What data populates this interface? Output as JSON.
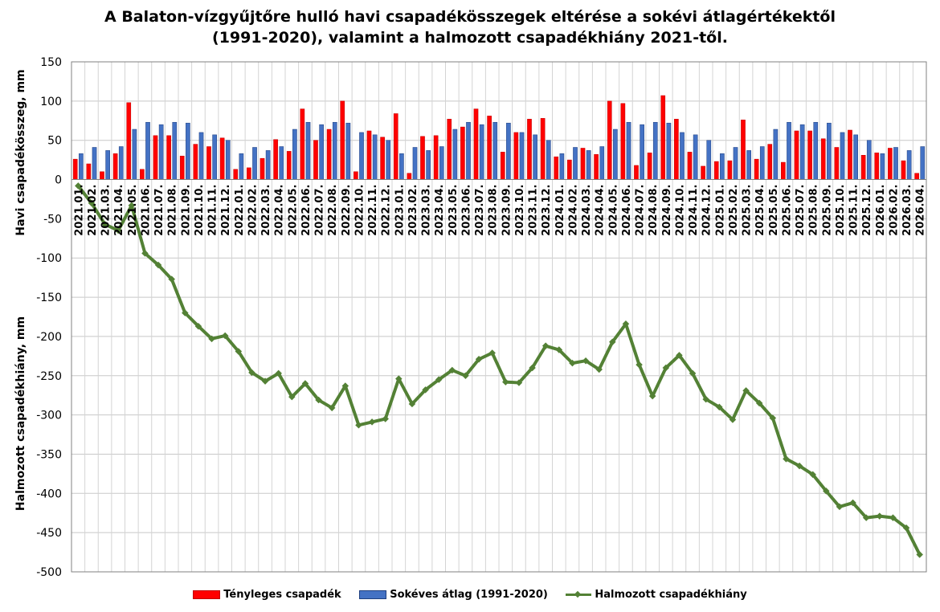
{
  "chart_data": {
    "type": "bar",
    "title_line1": "A Balaton-vízgyűjtőre hulló havi csapadékösszegek eltérése a sokévi átlagértékektől",
    "title_line2": "(1991-2020), valamint a halmozott csapadékhiány 2021-től.",
    "ylabel_top": "Havi csapadékösszeg, mm",
    "ylabel_bottom": "Halmozott csapadékhiány, mm",
    "ylim": [
      -500,
      150
    ],
    "yticks": [
      150,
      100,
      50,
      0,
      -50,
      -100,
      -150,
      -200,
      -250,
      -300,
      -350,
      -400,
      -450,
      -500
    ],
    "grid": true,
    "legend_position": "bottom",
    "colors": {
      "actual": "#ff0000",
      "average": "#4472c4",
      "cumulative": "#538135"
    },
    "categories": [
      "2021.01.",
      "2021.02.",
      "2021.03.",
      "2021.04.",
      "2021.05.",
      "2021.06.",
      "2021.07.",
      "2021.08.",
      "2021.09.",
      "2021.10.",
      "2021.11.",
      "2021.12.",
      "2022.01.",
      "2022.02.",
      "2022.03.",
      "2022.04.",
      "2022.05.",
      "2022.06.",
      "2022.07.",
      "2022.08.",
      "2022.09.",
      "2022.10.",
      "2022.11.",
      "2022.12.",
      "2023.01.",
      "2023.02.",
      "2023.03.",
      "2023.04.",
      "2023.05.",
      "2023.06.",
      "2023.07.",
      "2023.08.",
      "2023.09.",
      "2023.10.",
      "2023.11.",
      "2023.12.",
      "2024.01.",
      "2024.02.",
      "2024.03.",
      "2024.04.",
      "2024.05.",
      "2024.06.",
      "2024.07.",
      "2024.08.",
      "2024.09.",
      "2024.10.",
      "2024.11.",
      "2024.12.",
      "2025.01.",
      "2025.02.",
      "2025.03.",
      "2025.04.",
      "2025.05.",
      "2025.06.",
      "2025.07.",
      "2025.08.",
      "2025.09.",
      "2025.10.",
      "2025.11.",
      "2025.12.",
      "2026.01.",
      "2026.02.",
      "2026.03.",
      "2026.04."
    ],
    "series": [
      {
        "name": "Tényleges csapadék",
        "type": "bar",
        "values": [
          26,
          20,
          10,
          33,
          98,
          13,
          56,
          56,
          30,
          45,
          42,
          53,
          13,
          15,
          27,
          51,
          36,
          90,
          50,
          64,
          100,
          10,
          62,
          54,
          84,
          8,
          55,
          56,
          77,
          67,
          90,
          81,
          35,
          60,
          77,
          78,
          29,
          25,
          40,
          32,
          100,
          97,
          18,
          34,
          107,
          77,
          35,
          17,
          23,
          24,
          76,
          26,
          45,
          22,
          62,
          62,
          52,
          41,
          63,
          31,
          34,
          40,
          24,
          8
        ]
      },
      {
        "name": "Sokéves átlag (1991-2020)",
        "type": "bar",
        "values": [
          33,
          41,
          37,
          42,
          64,
          73,
          70,
          73,
          72,
          60,
          57,
          50,
          33,
          41,
          37,
          42,
          64,
          73,
          70,
          73,
          72,
          60,
          57,
          50,
          33,
          41,
          37,
          42,
          64,
          73,
          70,
          73,
          72,
          60,
          57,
          50,
          33,
          41,
          37,
          42,
          64,
          73,
          70,
          73,
          72,
          60,
          57,
          50,
          33,
          41,
          37,
          42,
          64,
          73,
          70,
          73,
          72,
          60,
          57,
          50,
          33,
          41,
          37,
          42
        ]
      },
      {
        "name": "Halmozott csapadékhiány",
        "type": "line",
        "values": [
          -8,
          -30,
          -57,
          -65,
          -33,
          -94,
          -109,
          -127,
          -170,
          -187,
          -203,
          -199,
          -219,
          -246,
          -257,
          -247,
          -277,
          -260,
          -281,
          -291,
          -263,
          -313,
          -309,
          -305,
          -254,
          -286,
          -268,
          -255,
          -243,
          -250,
          -229,
          -221,
          -258,
          -259,
          -240,
          -212,
          -217,
          -234,
          -231,
          -242,
          -207,
          -184,
          -236,
          -276,
          -240,
          -224,
          -247,
          -280,
          -290,
          -306,
          -269,
          -285,
          -304,
          -356,
          -365,
          -376,
          -397,
          -417,
          -412,
          -431,
          -429,
          -431,
          -444,
          -478
        ]
      }
    ]
  }
}
